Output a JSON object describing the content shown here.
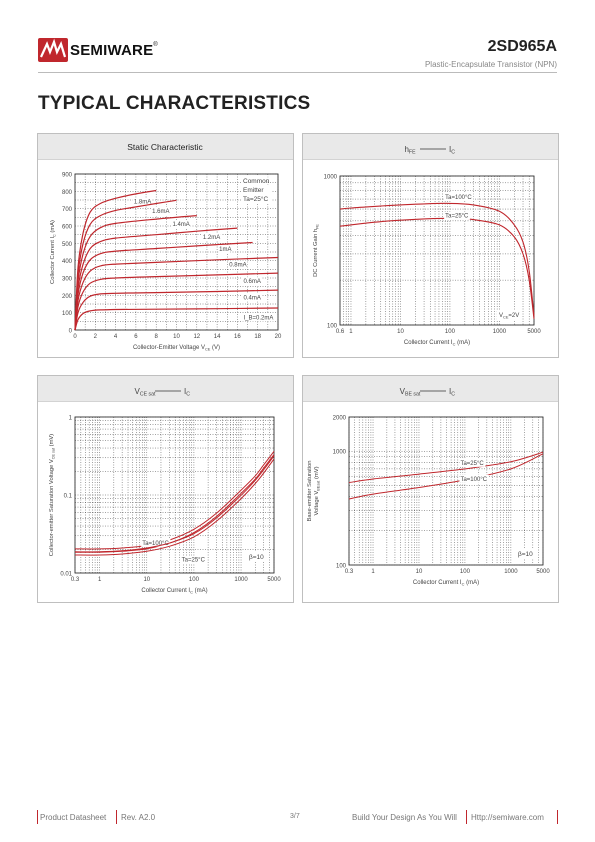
{
  "header": {
    "brand": "SEMIWARE",
    "registered": "®",
    "part_number": "2SD965A",
    "description": "Plastic-Encapsulate Transistor (NPN)"
  },
  "page_title": "TYPICAL CHARACTERISTICS",
  "footer": {
    "doc_type": "Product Datasheet",
    "revision": "Rev. A2.0",
    "page": "3/7",
    "slogan": "Build Your Design As You Will",
    "url": "Http://semiware.com"
  },
  "colors": {
    "accent": "#c0272d",
    "curve": "#c0272d",
    "panel_header": "#e9e9e9"
  },
  "chart_data": [
    {
      "type": "line",
      "title": "Static Characteristic",
      "xlabel": "Collector-Emitter Voltage V",
      "xlabel_sub": "CE",
      "xlabel_unit": "(V)",
      "ylabel": "Collector Current I",
      "ylabel_sub": "C",
      "ylabel_unit": "(mA)",
      "xlim": [
        0,
        20
      ],
      "ylim": [
        0,
        900
      ],
      "xticks": [
        0,
        2,
        4,
        6,
        8,
        10,
        12,
        14,
        16,
        18,
        20
      ],
      "yticks": [
        0,
        100,
        200,
        300,
        400,
        500,
        600,
        700,
        800,
        900
      ],
      "annotation": [
        "Common",
        "Emitter",
        "Ta=25°C"
      ],
      "series": [
        {
          "name": "1.8mA",
          "x": [
            0,
            0.3,
            0.8,
            1.5,
            2.5,
            4,
            6,
            8
          ],
          "y": [
            0,
            360,
            560,
            680,
            730,
            760,
            785,
            805
          ]
        },
        {
          "name": "1.6mA",
          "x": [
            0,
            0.3,
            0.8,
            1.5,
            2.5,
            4,
            6,
            8,
            10
          ],
          "y": [
            0,
            320,
            500,
            610,
            660,
            690,
            710,
            730,
            748
          ]
        },
        {
          "name": "1.4mA",
          "x": [
            0,
            0.3,
            0.8,
            1.5,
            2.5,
            4,
            8,
            12
          ],
          "y": [
            0,
            280,
            440,
            540,
            590,
            615,
            640,
            660
          ]
        },
        {
          "name": "1.2mA",
          "x": [
            0,
            0.3,
            0.8,
            1.5,
            2.5,
            4,
            8,
            12,
            16
          ],
          "y": [
            0,
            240,
            380,
            470,
            510,
            530,
            550,
            570,
            588
          ]
        },
        {
          "name": "1mA",
          "x": [
            0,
            0.3,
            0.8,
            1.5,
            2.5,
            4,
            8,
            12,
            17.5
          ],
          "y": [
            0,
            205,
            330,
            405,
            440,
            455,
            470,
            485,
            505
          ]
        },
        {
          "name": "0.8mA",
          "x": [
            0,
            0.3,
            0.8,
            1.5,
            2.5,
            4,
            8,
            14,
            20
          ],
          "y": [
            0,
            170,
            275,
            340,
            370,
            380,
            390,
            405,
            418
          ]
        },
        {
          "name": "0.6mA",
          "x": [
            0,
            0.3,
            0.8,
            1.5,
            2.5,
            4,
            8,
            14,
            20
          ],
          "y": [
            0,
            135,
            220,
            270,
            292,
            300,
            308,
            318,
            328
          ]
        },
        {
          "name": "0.4mA",
          "x": [
            0,
            0.3,
            0.8,
            1.5,
            2.5,
            4,
            8,
            14,
            20
          ],
          "y": [
            0,
            100,
            160,
            195,
            208,
            212,
            216,
            222,
            230
          ]
        },
        {
          "name": "I_B=0.2mA",
          "x": [
            0,
            0.3,
            0.8,
            1.5,
            2.5,
            4,
            8,
            14,
            20
          ],
          "y": [
            0,
            60,
            95,
            110,
            116,
            118,
            120,
            123,
            127
          ]
        }
      ]
    },
    {
      "type": "line",
      "title": "h",
      "title_sub": "FE",
      "title_suffix": "I",
      "title_suffix_sub": "C",
      "xlabel": "Collector Current I",
      "xlabel_sub": "C",
      "xlabel_unit": "(mA)",
      "ylabel": "DC Current Gain h",
      "ylabel_sub": "FE",
      "x_scale": "log",
      "y_scale": "log",
      "xlim": [
        0.6,
        5000
      ],
      "ylim": [
        100,
        1000
      ],
      "xticks": [
        0.6,
        1,
        10,
        100,
        1000,
        5000
      ],
      "xticklabels": [
        "0.6",
        "1",
        "10",
        "100",
        "1000",
        "5000"
      ],
      "yticks": [
        100,
        1000
      ],
      "yticklabels": [
        "100",
        "1000"
      ],
      "annotation": [
        "V",
        "CE",
        "=2V"
      ],
      "series": [
        {
          "name": "Ta=100°C",
          "x": [
            0.6,
            1,
            3,
            10,
            30,
            100,
            300,
            1000,
            2000,
            3000,
            4000,
            5000
          ],
          "y": [
            600,
            610,
            625,
            640,
            650,
            655,
            640,
            580,
            470,
            360,
            230,
            115
          ]
        },
        {
          "name": "Ta=25°C",
          "x": [
            0.6,
            1,
            3,
            10,
            30,
            100,
            300,
            1000,
            2000,
            3000,
            4000,
            5000
          ],
          "y": [
            460,
            470,
            490,
            505,
            515,
            520,
            510,
            470,
            390,
            300,
            200,
            110
          ]
        }
      ]
    },
    {
      "type": "line",
      "title": "V",
      "title_sub": "CE sat",
      "title_suffix": "I",
      "title_suffix_sub": "C",
      "xlabel": "Collector Current I",
      "xlabel_sub": "C",
      "xlabel_unit": "(mA)",
      "ylabel": "Collector-emitter Saturation Voltage V",
      "ylabel_sub": "CE sat",
      "ylabel_unit": "(mV)",
      "x_scale": "log",
      "y_scale": "log",
      "xlim": [
        0.3,
        5000
      ],
      "ylim": [
        0.01,
        1
      ],
      "xticks": [
        0.3,
        1,
        10,
        100,
        1000,
        5000
      ],
      "xticklabels": [
        "0.3",
        "1",
        "10",
        "100",
        "1000",
        "5000"
      ],
      "yticks": [
        0.01,
        0.1,
        1
      ],
      "yticklabels": [
        "0.01",
        "0.1",
        "1"
      ],
      "annotation": [
        "β=10"
      ],
      "series": [
        {
          "name": "Ta=100°C",
          "x": [
            0.3,
            1,
            3,
            10,
            30,
            100,
            300,
            1000,
            2000,
            3000,
            5000
          ],
          "y": [
            0.0185,
            0.0185,
            0.019,
            0.0205,
            0.024,
            0.033,
            0.053,
            0.105,
            0.16,
            0.22,
            0.33
          ]
        },
        {
          "name": "Ta=25°C",
          "x": [
            0.3,
            1,
            3,
            10,
            30,
            100,
            300,
            1000,
            2000,
            3000,
            5000
          ],
          "y": [
            0.017,
            0.017,
            0.0175,
            0.019,
            0.022,
            0.029,
            0.046,
            0.09,
            0.14,
            0.19,
            0.29
          ]
        }
      ]
    },
    {
      "type": "line",
      "title": "V",
      "title_sub": "BE sat",
      "title_suffix": "I",
      "title_suffix_sub": "C",
      "xlabel": "Collector Current I",
      "xlabel_sub": "C",
      "xlabel_unit": "(mA)",
      "ylabel": "Base-emitter Saturation",
      "ylabel_line2": "Voltage V",
      "ylabel_sub": "BEsat",
      "ylabel_unit": "(mV)",
      "x_scale": "log",
      "y_scale": "log",
      "xlim": [
        0.3,
        5000
      ],
      "ylim": [
        100,
        2000
      ],
      "xticks": [
        0.3,
        1,
        10,
        100,
        1000,
        5000
      ],
      "xticklabels": [
        "0.3",
        "1",
        "10",
        "100",
        "1000",
        "5000"
      ],
      "yticks": [
        100,
        1000,
        2000
      ],
      "yticklabels": [
        "100",
        "1000",
        "2000"
      ],
      "annotation": [
        "β=10"
      ],
      "series": [
        {
          "name": "Ta=25°C",
          "x": [
            0.3,
            1,
            10,
            100,
            1000,
            5000
          ],
          "y": [
            530,
            570,
            630,
            700,
            810,
            980
          ]
        },
        {
          "name": "Ta=100°C",
          "x": [
            0.3,
            1,
            10,
            100,
            1000,
            5000
          ],
          "y": [
            380,
            420,
            480,
            560,
            700,
            950
          ]
        }
      ]
    }
  ]
}
